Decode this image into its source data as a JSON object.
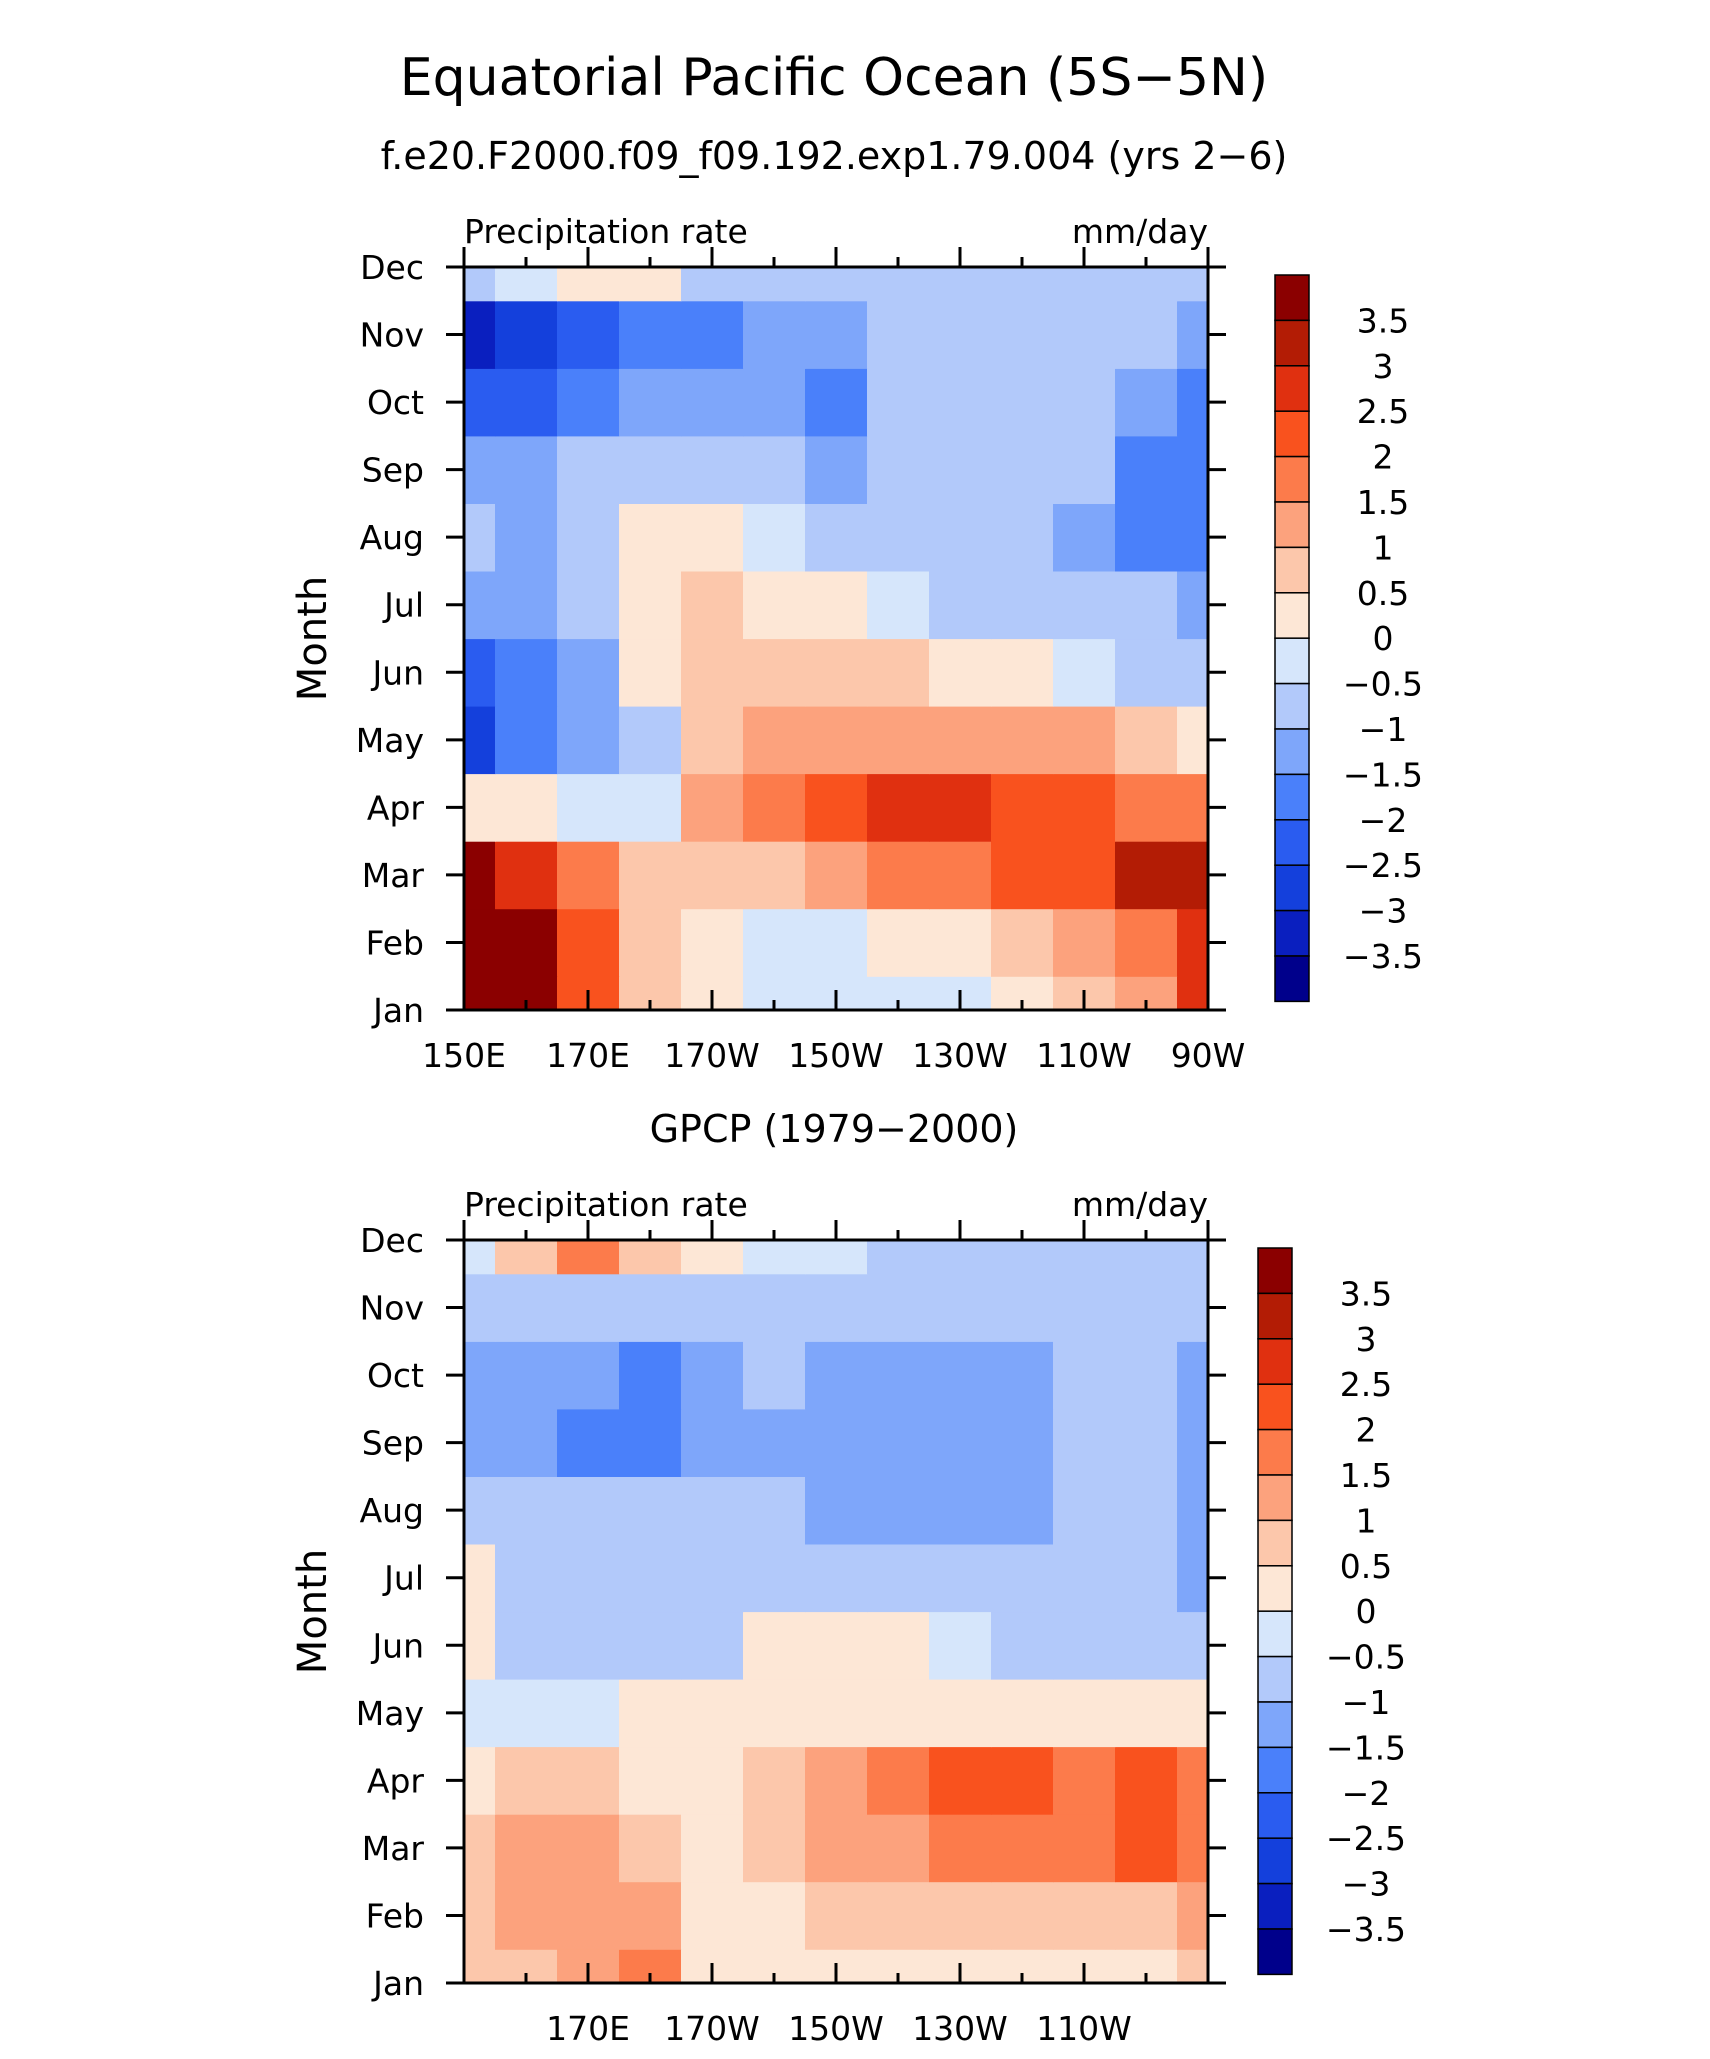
{
  "title": "Equatorial Pacific Ocean (5S−5N)",
  "chart_data": [
    {
      "type": "heatmap",
      "subtitle": "f.e20.F2000.f09_f09.192.exp1.79.004 (yrs 2−6)",
      "left_label": "Precipitation rate",
      "right_label": "mm/day",
      "ylabel": "Month",
      "x_ticks": [
        "150E",
        "170E",
        "170W",
        "150W",
        "130W",
        "110W",
        "90W"
      ],
      "y_ticks": [
        "Jan",
        "Feb",
        "Mar",
        "Apr",
        "May",
        "Jun",
        "Jul",
        "Aug",
        "Sep",
        "Oct",
        "Nov",
        "Dec"
      ],
      "xlim": [
        "150E",
        "90W"
      ],
      "lon_columns": [
        "150E",
        "160E",
        "170E",
        "180",
        "170W",
        "160W",
        "150W",
        "140W",
        "130W",
        "120W",
        "110W",
        "100W",
        "90W"
      ],
      "months": [
        "Jan",
        "Feb",
        "Mar",
        "Apr",
        "May",
        "Jun",
        "Jul",
        "Aug",
        "Sep",
        "Oct",
        "Nov",
        "Dec"
      ],
      "values": [
        [
          3.8,
          3.8,
          2.0,
          0.8,
          0.3,
          -0.3,
          -0.3,
          -0.3,
          -0.2,
          0.3,
          0.8,
          1.0,
          2.8
        ],
        [
          3.8,
          3.8,
          2.3,
          0.8,
          0.3,
          -0.2,
          -0.2,
          0.2,
          0.3,
          0.8,
          1.3,
          1.8,
          2.8
        ],
        [
          3.5,
          2.8,
          1.8,
          0.8,
          0.8,
          0.8,
          1.3,
          1.5,
          1.8,
          2.0,
          2.3,
          3.0,
          3.2
        ],
        [
          0.3,
          0.3,
          -0.3,
          -0.3,
          1.3,
          1.8,
          2.3,
          2.8,
          2.8,
          2.3,
          2.3,
          1.8,
          1.8
        ],
        [
          -2.8,
          -1.8,
          -1.3,
          -0.6,
          0.8,
          1.3,
          1.3,
          1.3,
          1.3,
          1.3,
          1.3,
          0.8,
          0.3
        ],
        [
          -2.3,
          -1.8,
          -1.3,
          0.3,
          0.8,
          0.8,
          0.8,
          0.8,
          0.3,
          0.3,
          -0.3,
          -0.6,
          -1.0
        ],
        [
          -1.3,
          -1.3,
          -0.6,
          0.3,
          0.8,
          0.3,
          0.3,
          -0.3,
          -0.6,
          -0.8,
          -0.8,
          -0.8,
          -1.3
        ],
        [
          -0.6,
          -1.3,
          -0.6,
          0.3,
          0.3,
          -0.3,
          -0.6,
          -0.8,
          -0.8,
          -0.8,
          -1.2,
          -1.6,
          -1.6
        ],
        [
          -1.3,
          -1.3,
          -0.8,
          -0.6,
          -0.6,
          -0.8,
          -1.2,
          -1.0,
          -0.8,
          -0.8,
          -1.0,
          -1.6,
          -1.6
        ],
        [
          -2.3,
          -2.3,
          -1.6,
          -1.3,
          -1.3,
          -1.3,
          -1.6,
          -0.8,
          -0.8,
          -0.8,
          -0.8,
          -1.3,
          -1.6
        ],
        [
          -3.2,
          -2.8,
          -2.3,
          -1.8,
          -1.8,
          -1.3,
          -1.3,
          -0.8,
          -0.8,
          -0.8,
          -0.8,
          -0.8,
          -1.3
        ],
        [
          -1.0,
          -0.3,
          0.3,
          0.3,
          -0.6,
          -0.6,
          -0.8,
          -0.8,
          -0.8,
          -0.8,
          -0.8,
          -0.8,
          -0.8
        ]
      ],
      "colorbar_labels": [
        "3.5",
        "3",
        "2.5",
        "2",
        "1.5",
        "1",
        "0.5",
        "0",
        "−0.5",
        "−1",
        "−1.5",
        "−2",
        "−2.5",
        "−3",
        "−3.5"
      ]
    },
    {
      "type": "heatmap",
      "subtitle": "GPCP (1979−2000)",
      "left_label": "Precipitation rate",
      "right_label": "mm/day",
      "ylabel": "Month",
      "x_ticks": [
        "",
        "170E",
        "170W",
        "150W",
        "130W",
        "110W",
        ""
      ],
      "y_ticks": [
        "Jan",
        "Feb",
        "Mar",
        "Apr",
        "May",
        "Jun",
        "Jul",
        "Aug",
        "Sep",
        "Oct",
        "Nov",
        "Dec"
      ],
      "xlim": [
        "150E",
        "90W"
      ],
      "lon_columns": [
        "150E",
        "160E",
        "170E",
        "180",
        "170W",
        "160W",
        "150W",
        "140W",
        "130W",
        "120W",
        "110W",
        "100W",
        "90W"
      ],
      "months": [
        "Jan",
        "Feb",
        "Mar",
        "Apr",
        "May",
        "Jun",
        "Jul",
        "Aug",
        "Sep",
        "Oct",
        "Nov",
        "Dec"
      ],
      "values": [
        [
          0.8,
          0.8,
          1.3,
          1.8,
          0.3,
          0.3,
          0.3,
          0.3,
          0.3,
          0.3,
          0.3,
          0.3,
          0.8
        ],
        [
          0.8,
          1.3,
          1.3,
          1.3,
          0.3,
          0.3,
          0.8,
          0.8,
          0.8,
          0.8,
          0.8,
          0.8,
          1.3
        ],
        [
          0.8,
          1.3,
          1.3,
          0.8,
          0.3,
          0.8,
          1.3,
          1.3,
          1.8,
          1.8,
          1.8,
          2.3,
          1.8
        ],
        [
          0.3,
          0.8,
          0.8,
          0.3,
          0.3,
          0.8,
          1.3,
          1.8,
          2.3,
          2.3,
          1.8,
          2.3,
          1.8
        ],
        [
          -0.3,
          -0.3,
          -0.3,
          0.3,
          0.3,
          0.3,
          0.3,
          0.3,
          0.3,
          0.3,
          0.3,
          0.3,
          0.3
        ],
        [
          0.3,
          -0.6,
          -0.8,
          -0.8,
          -0.8,
          0.3,
          0.3,
          0.3,
          -0.3,
          -0.6,
          -0.6,
          -0.6,
          -0.6
        ],
        [
          0.3,
          -0.6,
          -0.8,
          -0.8,
          -0.8,
          -0.8,
          -0.8,
          -0.8,
          -0.8,
          -0.8,
          -0.8,
          -0.8,
          -1.3
        ],
        [
          -0.8,
          -0.8,
          -0.8,
          -0.8,
          -0.8,
          -0.8,
          -1.3,
          -1.3,
          -1.3,
          -1.3,
          -0.8,
          -0.8,
          -1.3
        ],
        [
          -1.3,
          -1.3,
          -1.8,
          -1.8,
          -1.3,
          -1.3,
          -1.3,
          -1.3,
          -1.3,
          -1.3,
          -0.8,
          -0.8,
          -1.3
        ],
        [
          -1.3,
          -1.3,
          -1.3,
          -1.8,
          -1.3,
          -0.8,
          -1.3,
          -1.3,
          -1.3,
          -1.3,
          -0.8,
          -0.8,
          -1.3
        ],
        [
          -0.8,
          -0.8,
          -0.8,
          -0.8,
          -0.8,
          -0.8,
          -0.8,
          -0.8,
          -0.8,
          -0.8,
          -0.8,
          -0.8,
          -0.8
        ],
        [
          -0.3,
          0.8,
          1.8,
          0.8,
          0.3,
          -0.3,
          -0.3,
          -0.6,
          -0.6,
          -0.6,
          -0.6,
          -0.6,
          -0.6
        ]
      ],
      "colorbar_labels": [
        "3.5",
        "3",
        "2.5",
        "2",
        "1.5",
        "1",
        "0.5",
        "0",
        "−0.5",
        "−1",
        "−1.5",
        "−2",
        "−2.5",
        "−3",
        "−3.5"
      ]
    }
  ],
  "colormap": {
    "levels": [
      -3.5,
      -3,
      -2.5,
      -2,
      -1.5,
      -1,
      -0.5,
      0,
      0.5,
      1,
      1.5,
      2,
      2.5,
      3,
      3.5
    ],
    "colors": [
      "#00008b",
      "#0a1fbf",
      "#1440dc",
      "#2a5cf0",
      "#4a80fa",
      "#7ea6fa",
      "#b2c9fa",
      "#d6e6fb",
      "#fde7d6",
      "#fcc7ab",
      "#fca27d",
      "#fc7b4b",
      "#f9521e",
      "#e03010",
      "#b31c05",
      "#8b0000"
    ]
  }
}
